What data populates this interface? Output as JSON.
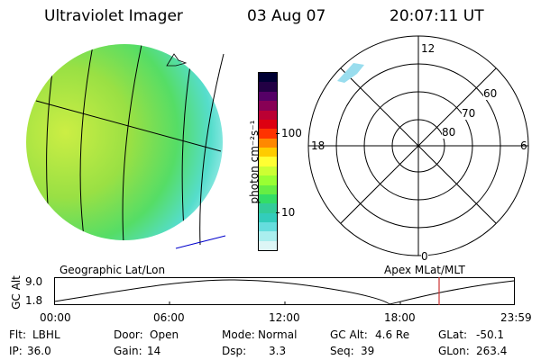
{
  "header": {
    "instrument": "Ultraviolet Imager",
    "date": "03 Aug 07",
    "time": "20:07:11 UT"
  },
  "colorbar": {
    "unit_label": "photon cm⁻²s⁻¹",
    "ticks": [
      "100",
      "10"
    ],
    "colors": [
      "#000033",
      "#220044",
      "#550066",
      "#880055",
      "#bb0033",
      "#dd0011",
      "#ff3300",
      "#ff8800",
      "#ffcc00",
      "#ffff33",
      "#ccff33",
      "#99ff33",
      "#66ee44",
      "#33dd66",
      "#33cc99",
      "#33ccbb",
      "#66dddd",
      "#aaeeee",
      "#ddf6f6"
    ]
  },
  "polar_plot": {
    "labels": {
      "top": "12",
      "left": "18",
      "right": "6",
      "bottom": "0",
      "ring_60": "60",
      "ring_70": "70",
      "ring_80": "80"
    }
  },
  "timeline": {
    "left_label": "Geographic Lat/Lon",
    "right_label": "Apex MLat/MLT",
    "y_axis_label": "GC Alt",
    "y_ticks": [
      "9.0",
      "1.8"
    ],
    "x_ticks": [
      "00:00",
      "06:00",
      "12:00",
      "18:00",
      "23:59"
    ],
    "current_time_marker": "20:07"
  },
  "footer": {
    "row1": [
      {
        "label": "Flt:",
        "value": "LBHL"
      },
      {
        "label": "Door:",
        "value": "Open"
      },
      {
        "label": "Mode:",
        "value": "Normal"
      },
      {
        "label": "GC Alt:",
        "value": "4.6 Re"
      },
      {
        "label": "GLat:",
        "value": "-50.1"
      }
    ],
    "row2": [
      {
        "label": "IP:",
        "value": "36.0"
      },
      {
        "label": "Gain:",
        "value": "14"
      },
      {
        "label": "Dsp:",
        "value": "3.3"
      },
      {
        "label": "Seq:",
        "value": "39"
      },
      {
        "label": "GLon:",
        "value": "263.4"
      }
    ]
  }
}
